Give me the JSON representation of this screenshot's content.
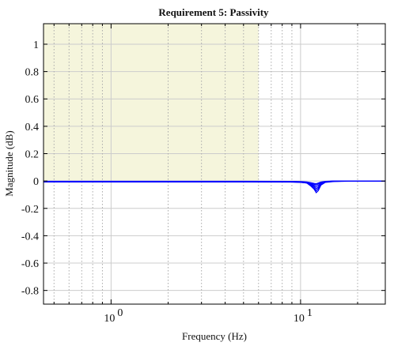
{
  "chart_data": {
    "type": "line",
    "title": "Requirement 5: Passivity",
    "xlabel": "Frequency (Hz)",
    "ylabel": "Magnitude (dB)",
    "xscale": "log",
    "xlim": [
      0.44,
      28
    ],
    "ylim": [
      -0.9,
      1.15
    ],
    "xticks": [
      {
        "value": 1,
        "base": "10",
        "exp": "0"
      },
      {
        "value": 10,
        "base": "10",
        "exp": "1"
      }
    ],
    "yticks": [
      1,
      0.8,
      0.6,
      0.4,
      0.2,
      0,
      -0.2,
      -0.4,
      -0.6,
      -0.8
    ],
    "ytick_labels": [
      "1",
      "0.8",
      "0.6",
      "0.4",
      "0.2",
      "0",
      "-0.2",
      "-0.4",
      "-0.6",
      "-0.8"
    ],
    "grid": true,
    "shaded_region": {
      "x": [
        0.44,
        6.0
      ],
      "y": [
        0,
        1.15
      ],
      "color": "#f5f5dc"
    },
    "line_color": "#0000ff",
    "series": [
      {
        "x": [
          0.44,
          1,
          2,
          5,
          9.0,
          10.0,
          10.8,
          11.3,
          11.8,
          12.1,
          12.4,
          12.8,
          13.5,
          15,
          20,
          28
        ],
        "y": [
          -0.005,
          -0.005,
          -0.005,
          -0.005,
          -0.006,
          -0.008,
          -0.015,
          -0.035,
          -0.06,
          -0.085,
          -0.07,
          -0.03,
          -0.01,
          -0.003,
          0,
          0
        ]
      },
      {
        "x": [
          0.44,
          1,
          2,
          5,
          9.0,
          10.0,
          10.8,
          11.3,
          11.8,
          12.1,
          12.4,
          12.8,
          13.5,
          15,
          20,
          28
        ],
        "y": [
          -0.004,
          -0.004,
          -0.004,
          -0.004,
          -0.005,
          -0.007,
          -0.012,
          -0.028,
          -0.05,
          -0.07,
          -0.055,
          -0.025,
          -0.008,
          -0.002,
          0,
          0
        ]
      },
      {
        "x": [
          0.44,
          1,
          2,
          5,
          9.0,
          10.0,
          10.8,
          11.3,
          11.8,
          12.1,
          12.4,
          12.8,
          13.5,
          15,
          20,
          28
        ],
        "y": [
          -0.006,
          -0.006,
          -0.006,
          -0.006,
          -0.007,
          -0.009,
          -0.014,
          -0.025,
          -0.04,
          -0.055,
          -0.045,
          -0.02,
          -0.007,
          -0.002,
          0,
          0
        ]
      },
      {
        "x": [
          0.44,
          1,
          2,
          5,
          9.0,
          10.0,
          10.8,
          11.3,
          11.8,
          12.1,
          12.4,
          12.8,
          13.5,
          15,
          20,
          28
        ],
        "y": [
          -0.003,
          -0.003,
          -0.003,
          -0.003,
          -0.004,
          -0.006,
          -0.01,
          -0.02,
          -0.032,
          -0.04,
          -0.033,
          -0.016,
          -0.005,
          -0.001,
          0,
          0
        ]
      },
      {
        "x": [
          0.44,
          1,
          2,
          5,
          9.0,
          10.0,
          10.8,
          11.3,
          11.8,
          12.1,
          12.4,
          12.8,
          13.5,
          15,
          20,
          28
        ],
        "y": [
          -0.007,
          -0.007,
          -0.007,
          -0.007,
          -0.008,
          -0.01,
          -0.013,
          -0.018,
          -0.024,
          -0.028,
          -0.022,
          -0.012,
          -0.005,
          -0.001,
          0,
          0
        ]
      },
      {
        "x": [
          0.44,
          1,
          2,
          5,
          9.0,
          10.0,
          10.8,
          11.3,
          11.8,
          12.1,
          12.4,
          12.8,
          13.5,
          15,
          20,
          28
        ],
        "y": [
          -0.002,
          -0.002,
          -0.002,
          -0.002,
          -0.003,
          -0.004,
          -0.007,
          -0.012,
          -0.018,
          -0.02,
          -0.015,
          -0.008,
          -0.003,
          0,
          0,
          0
        ]
      }
    ]
  }
}
